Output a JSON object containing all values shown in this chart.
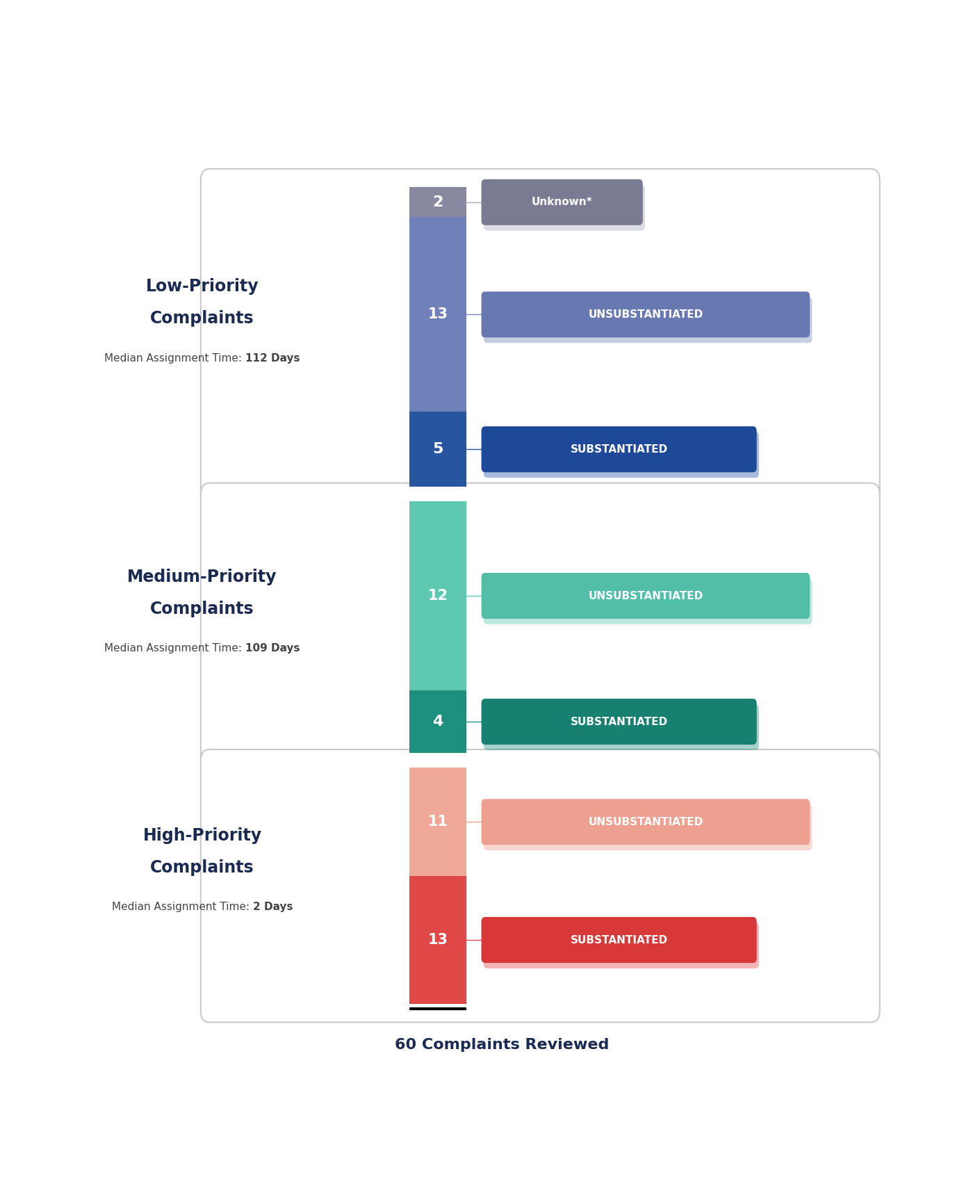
{
  "groups": [
    {
      "label_line1": "Low-Priority",
      "label_line2": "Complaints",
      "subtitle_prefix": "Median Assignment Time: ",
      "subtitle_bold": "112 Days",
      "segments": [
        {
          "value": 2,
          "label": "Unknown*",
          "bar_color": "#8888a0",
          "tag_color": "#7a7a92",
          "line_color": "#aaaabc",
          "type": "unknown"
        },
        {
          "value": 13,
          "label": "UNSUBSTANTIATED",
          "bar_color": "#7080b8",
          "tag_color": "#6878b0",
          "line_color": "#7888b8",
          "type": "unsub"
        },
        {
          "value": 5,
          "label": "SUBSTANTIATED",
          "bar_color": "#2855a0",
          "tag_color": "#1e4898",
          "line_color": "#2855a0",
          "type": "sub"
        }
      ]
    },
    {
      "label_line1": "Medium-Priority",
      "label_line2": "Complaints",
      "subtitle_prefix": "Median Assignment Time: ",
      "subtitle_bold": "109 Days",
      "segments": [
        {
          "value": 12,
          "label": "UNSUBSTANTIATED",
          "bar_color": "#5ec8b0",
          "tag_color": "#52bea8",
          "line_color": "#5ec8b0",
          "type": "unsub"
        },
        {
          "value": 4,
          "label": "SUBSTANTIATED",
          "bar_color": "#1e9080",
          "tag_color": "#188070",
          "line_color": "#1e9080",
          "type": "sub"
        }
      ]
    },
    {
      "label_line1": "High-Priority",
      "label_line2": "Complaints",
      "subtitle_prefix": "Median Assignment Time: ",
      "subtitle_bold": "2 Days",
      "segments": [
        {
          "value": 11,
          "label": "UNSUBSTANTIATED",
          "bar_color": "#f0a898",
          "tag_color": "#eda090",
          "line_color": "#eda090",
          "type": "unsub"
        },
        {
          "value": 13,
          "label": "SUBSTANTIATED",
          "bar_color": "#e04848",
          "tag_color": "#d83838",
          "line_color": "#e04848",
          "type": "sub"
        }
      ]
    }
  ],
  "footer": "60 Complaints Reviewed",
  "background_color": "#ffffff",
  "panel_border_color": "#c8c8c8",
  "label_color": "#1a2a50",
  "subtitle_color": "#444444"
}
